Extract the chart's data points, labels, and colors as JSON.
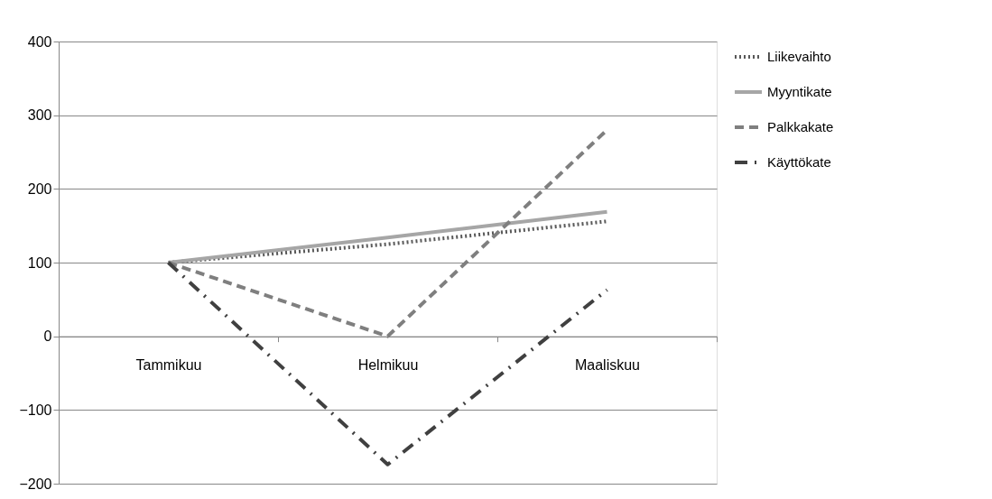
{
  "chart_data": {
    "type": "line",
    "categories": [
      "Tammikuu",
      "Helmikuu",
      "Maaliskuu"
    ],
    "series": [
      {
        "name": "Liikevaihto",
        "color": "#595959",
        "line_style": "dotted",
        "values": [
          100,
          125,
          156
        ]
      },
      {
        "name": "Myyntikate",
        "color": "#a6a6a6",
        "line_style": "solid",
        "values": [
          100,
          134,
          169
        ]
      },
      {
        "name": "Palkkakate",
        "color": "#7f7f7f",
        "line_style": "dashed",
        "values": [
          100,
          0,
          280
        ]
      },
      {
        "name": "Käyttökate",
        "color": "#404040",
        "line_style": "dashdot",
        "values": [
          100,
          -174,
          63
        ]
      }
    ],
    "ylim": [
      -200,
      400
    ],
    "yticks": [
      -200,
      -100,
      0,
      100,
      200,
      300,
      400
    ],
    "grid": "y",
    "legend": "right",
    "marker": "none"
  }
}
